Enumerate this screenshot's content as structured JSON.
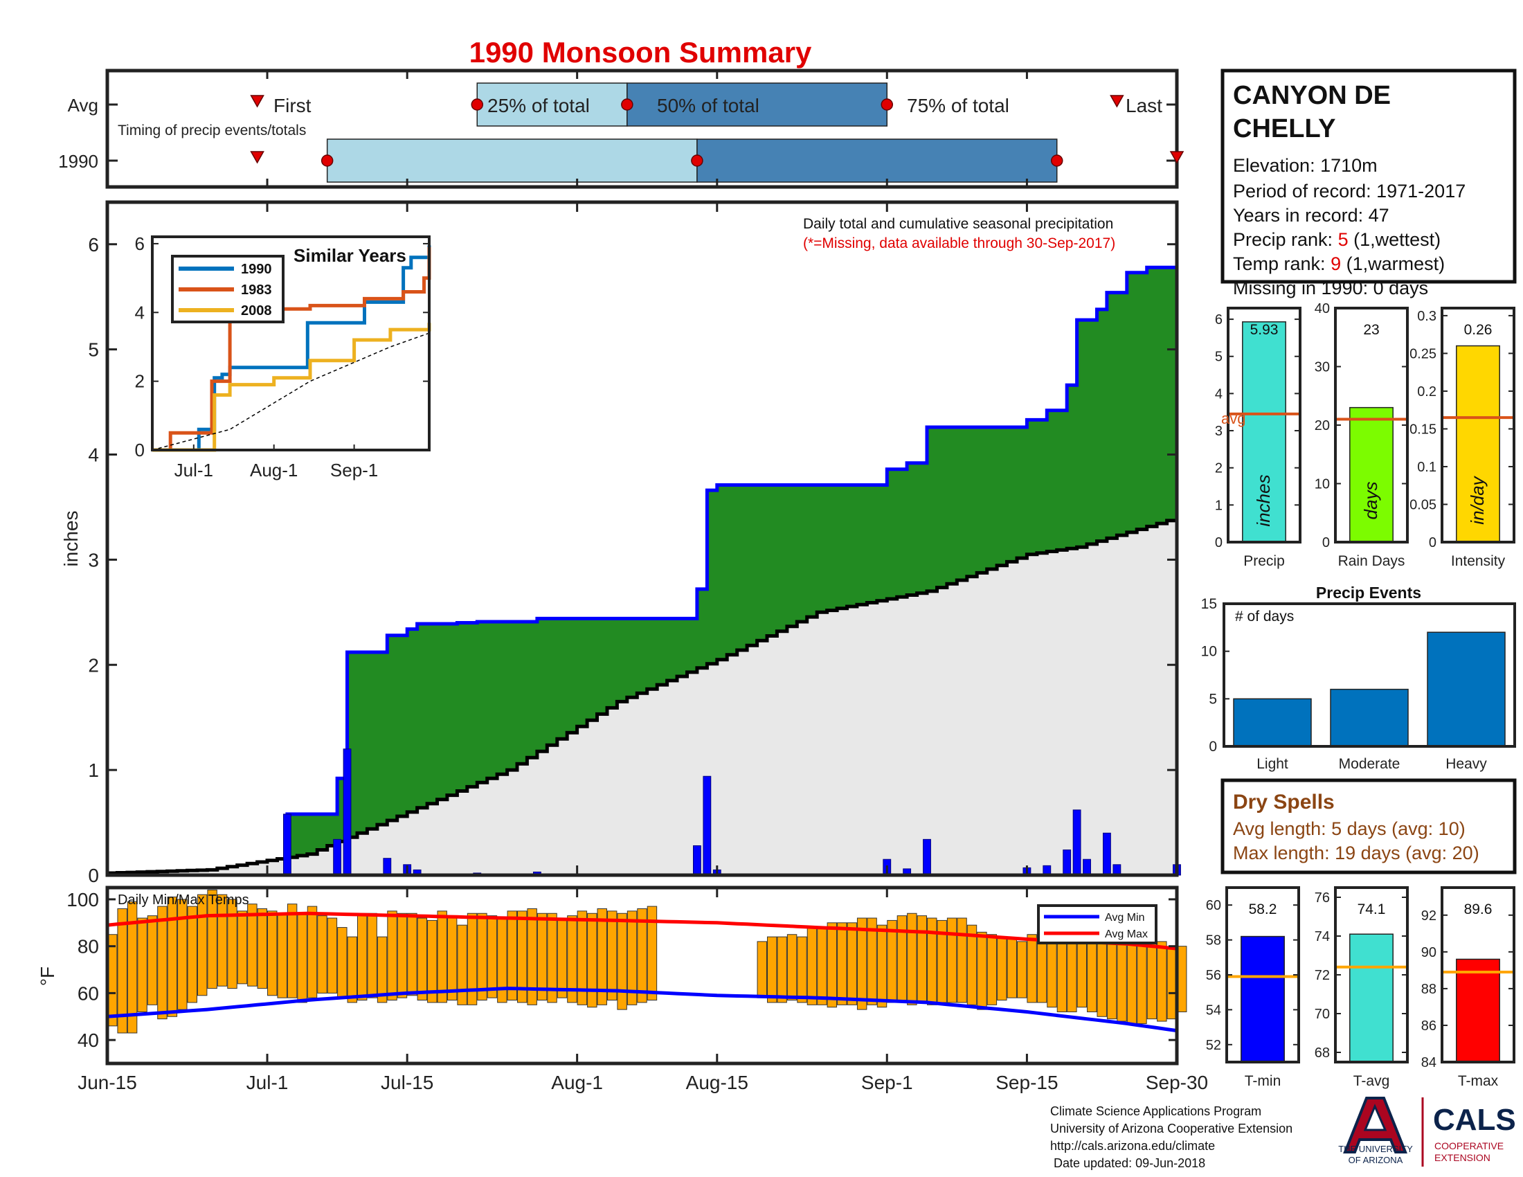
{
  "title": "1990 Monsoon Summary",
  "colors": {
    "title_red": "#e00000",
    "rank_red": "#e00000",
    "missing_red": "#e00000",
    "precip_cumulative_blue": "#0000ff",
    "excess_green": "#228b22",
    "normal_fill_gray": "#e8e8e8",
    "daily_precip_bar": "#0000ff",
    "temp_bar_orange": "#ffa500",
    "avg_min_line": "#0000ff",
    "avg_max_line": "#ff0000",
    "series_1990": "#0072bd",
    "series_1983": "#d95319",
    "series_2008": "#edb120",
    "precip_bar": "#40e0d0",
    "raindays_bar": "#7cfc00",
    "intensity_bar": "#ffd700",
    "avg_line": "#d95319",
    "events_bar": "#0072bd",
    "dryspell_brown": "#8b4513",
    "tmin_bar": "#0000ff",
    "tavg_bar": "#40e0d0",
    "tmax_bar": "#ff0000",
    "temp_avg_line": "#ffa500",
    "timing_light": "#add8e6",
    "timing_dark": "#4682b4",
    "ua_red": "#ab0520",
    "ua_navy": "#0c234b"
  },
  "timing": {
    "row_labels": [
      "Avg",
      "1990"
    ],
    "subtitle": "Timing of precip events/totals",
    "labels": {
      "first": "First",
      "p25": "25% of total",
      "p50": "50% of total",
      "p75": "75% of total",
      "last": "Last"
    },
    "avg": {
      "first": "1990-06-30",
      "p25": "1990-07-22",
      "p50": "1990-08-06",
      "p75": "1990-09-01",
      "last": "1990-09-24"
    },
    "y1990": {
      "first": "1990-06-30",
      "p25": "1990-07-07",
      "p50": "1990-08-13",
      "p75": "1990-09-18",
      "last": "1990-09-30"
    }
  },
  "station": {
    "name_line1": "CANYON DE",
    "name_line2": "CHELLY",
    "elevation": "Elevation: 1710m",
    "period": "Period of record: 1971-2017",
    "years": "Years in record: 47",
    "precip_rank_label": "Precip rank: ",
    "precip_rank_value": "5",
    "precip_rank_suffix": " (1,wettest)",
    "temp_rank_label": "Temp rank: ",
    "temp_rank_value": "9",
    "temp_rank_suffix": " (1,warmest)",
    "missing": "Missing in 1990: 0 days"
  },
  "main_chart": {
    "header": "Daily total and cumulative seasonal precipitation",
    "missing_note": "(*=Missing, data available through 30-Sep-2017)",
    "ylabel": "inches",
    "ylim": [
      0,
      6.4
    ],
    "yticks": [
      0,
      1,
      2,
      3,
      4,
      5,
      6
    ],
    "xticks": [
      {
        "date": "1990-06-15",
        "label": "Jun-15"
      },
      {
        "date": "1990-07-01",
        "label": "Jul-1"
      },
      {
        "date": "1990-07-15",
        "label": "Jul-15"
      },
      {
        "date": "1990-08-01",
        "label": "Aug-1"
      },
      {
        "date": "1990-08-15",
        "label": "Aug-15"
      },
      {
        "date": "1990-09-01",
        "label": "Sep-1"
      },
      {
        "date": "1990-09-15",
        "label": "Sep-15"
      },
      {
        "date": "1990-09-30",
        "label": "Sep-30"
      }
    ]
  },
  "chart_data": [
    {
      "type": "area",
      "title": "Daily total and cumulative seasonal precipitation",
      "ylabel": "inches",
      "x_range": [
        "1990-06-15",
        "1990-09-30"
      ],
      "ylim": [
        0,
        6.4
      ],
      "series": [
        {
          "name": "cumulative 1990",
          "points": [
            [
              "1990-06-15",
              0.0
            ],
            [
              "1990-07-02",
              0.0
            ],
            [
              "1990-07-03",
              0.58
            ],
            [
              "1990-07-07",
              0.58
            ],
            [
              "1990-07-08",
              0.92
            ],
            [
              "1990-07-09",
              2.12
            ],
            [
              "1990-07-12",
              2.12
            ],
            [
              "1990-07-13",
              2.28
            ],
            [
              "1990-07-14",
              2.28
            ],
            [
              "1990-07-15",
              2.34
            ],
            [
              "1990-07-16",
              2.39
            ],
            [
              "1990-07-20",
              2.4
            ],
            [
              "1990-07-22",
              2.41
            ],
            [
              "1990-07-27",
              2.41
            ],
            [
              "1990-07-28",
              2.44
            ],
            [
              "1990-08-12",
              2.44
            ],
            [
              "1990-08-13",
              2.72
            ],
            [
              "1990-08-14",
              3.66
            ],
            [
              "1990-08-15",
              3.71
            ],
            [
              "1990-08-31",
              3.71
            ],
            [
              "1990-09-01",
              3.86
            ],
            [
              "1990-09-03",
              3.92
            ],
            [
              "1990-09-05",
              4.26
            ],
            [
              "1990-09-14",
              4.26
            ],
            [
              "1990-09-15",
              4.33
            ],
            [
              "1990-09-16",
              4.33
            ],
            [
              "1990-09-17",
              4.42
            ],
            [
              "1990-09-19",
              4.66
            ],
            [
              "1990-09-20",
              5.28
            ],
            [
              "1990-09-22",
              5.38
            ],
            [
              "1990-09-23",
              5.54
            ],
            [
              "1990-09-25",
              5.73
            ],
            [
              "1990-09-27",
              5.78
            ],
            [
              "1990-09-30",
              5.93
            ]
          ]
        },
        {
          "name": "cumulative average",
          "points": [
            [
              "1990-06-15",
              0.02
            ],
            [
              "1990-06-25",
              0.05
            ],
            [
              "1990-07-05",
              0.2
            ],
            [
              "1990-07-15",
              0.6
            ],
            [
              "1990-07-25",
              1.0
            ],
            [
              "1990-08-05",
              1.65
            ],
            [
              "1990-08-15",
              2.05
            ],
            [
              "1990-08-25",
              2.5
            ],
            [
              "1990-09-05",
              2.7
            ],
            [
              "1990-09-15",
              3.05
            ],
            [
              "1990-09-20",
              3.12
            ],
            [
              "1990-09-30",
              3.4
            ]
          ]
        }
      ],
      "daily_precip": [
        [
          "1990-07-03",
          0.58
        ],
        [
          "1990-07-08",
          0.34
        ],
        [
          "1990-07-09",
          1.2
        ],
        [
          "1990-07-13",
          0.16
        ],
        [
          "1990-07-15",
          0.1
        ],
        [
          "1990-07-16",
          0.05
        ],
        [
          "1990-07-22",
          0.02
        ],
        [
          "1990-07-28",
          0.03
        ],
        [
          "1990-08-13",
          0.28
        ],
        [
          "1990-08-14",
          0.94
        ],
        [
          "1990-08-15",
          0.05
        ],
        [
          "1990-09-01",
          0.15
        ],
        [
          "1990-09-03",
          0.06
        ],
        [
          "1990-09-05",
          0.34
        ],
        [
          "1990-09-15",
          0.07
        ],
        [
          "1990-09-17",
          0.09
        ],
        [
          "1990-09-19",
          0.24
        ],
        [
          "1990-09-20",
          0.62
        ],
        [
          "1990-09-21",
          0.15
        ],
        [
          "1990-09-23",
          0.4
        ],
        [
          "1990-09-24",
          0.1
        ],
        [
          "1990-09-30",
          0.1
        ]
      ]
    },
    {
      "type": "line",
      "title": "Similar Years",
      "x_range": [
        "1990-06-15",
        "1990-09-30"
      ],
      "ylim": [
        0,
        6
      ],
      "yticks": [
        0,
        2,
        4,
        6
      ],
      "xticks": [
        "Jul-1",
        "Aug-1",
        "Sep-1"
      ],
      "series": [
        {
          "name": "1990",
          "points": [
            [
              "1990-06-15",
              0
            ],
            [
              "1990-07-02",
              0
            ],
            [
              "1990-07-03",
              0.6
            ],
            [
              "1990-07-07",
              0.6
            ],
            [
              "1990-07-09",
              2.1
            ],
            [
              "1990-07-12",
              2.2
            ],
            [
              "1990-07-15",
              2.4
            ],
            [
              "1990-08-12",
              2.4
            ],
            [
              "1990-08-14",
              3.7
            ],
            [
              "1990-08-31",
              3.7
            ],
            [
              "1990-09-05",
              4.3
            ],
            [
              "1990-09-15",
              4.3
            ],
            [
              "1990-09-20",
              5.3
            ],
            [
              "1990-09-23",
              5.6
            ],
            [
              "1990-09-30",
              5.95
            ]
          ]
        },
        {
          "name": "1983",
          "points": [
            [
              "1990-06-15",
              0
            ],
            [
              "1990-06-20",
              0
            ],
            [
              "1990-06-22",
              0.5
            ],
            [
              "1990-07-05",
              0.5
            ],
            [
              "1990-07-08",
              2.0
            ],
            [
              "1990-07-15",
              4.0
            ],
            [
              "1990-07-25",
              4.1
            ],
            [
              "1990-08-15",
              4.2
            ],
            [
              "1990-09-05",
              4.4
            ],
            [
              "1990-09-20",
              4.6
            ],
            [
              "1990-09-28",
              5.0
            ],
            [
              "1990-09-30",
              5.9
            ]
          ]
        },
        {
          "name": "2008",
          "points": [
            [
              "1990-06-15",
              0
            ],
            [
              "1990-07-07",
              0
            ],
            [
              "1990-07-09",
              1.6
            ],
            [
              "1990-07-15",
              1.9
            ],
            [
              "1990-08-01",
              2.1
            ],
            [
              "1990-08-15",
              2.6
            ],
            [
              "1990-09-01",
              3.2
            ],
            [
              "1990-09-15",
              3.5
            ],
            [
              "1990-09-30",
              3.7
            ]
          ]
        },
        {
          "name": "average",
          "points": [
            [
              "1990-06-15",
              0
            ],
            [
              "1990-07-15",
              0.6
            ],
            [
              "1990-08-15",
              2.0
            ],
            [
              "1990-09-15",
              3.0
            ],
            [
              "1990-09-30",
              3.4
            ]
          ]
        }
      ]
    },
    {
      "type": "bar",
      "title": "Daily Min/Max Temps",
      "ylabel": "°F",
      "ylim": [
        30,
        105
      ],
      "yticks": [
        40,
        60,
        80,
        100
      ],
      "legend": [
        "Avg Min",
        "Avg Max"
      ],
      "avg_min_points": [
        [
          "1990-06-15",
          50
        ],
        [
          "1990-06-25",
          53
        ],
        [
          "1990-07-05",
          57
        ],
        [
          "1990-07-15",
          60
        ],
        [
          "1990-07-25",
          62
        ],
        [
          "1990-08-05",
          61
        ],
        [
          "1990-08-15",
          59
        ],
        [
          "1990-08-25",
          58
        ],
        [
          "1990-09-05",
          56
        ],
        [
          "1990-09-15",
          52
        ],
        [
          "1990-09-25",
          47
        ],
        [
          "1990-09-30",
          44
        ]
      ],
      "avg_max_points": [
        [
          "1990-06-15",
          89
        ],
        [
          "1990-06-25",
          93
        ],
        [
          "1990-07-05",
          94
        ],
        [
          "1990-07-15",
          93
        ],
        [
          "1990-07-25",
          92
        ],
        [
          "1990-08-05",
          91
        ],
        [
          "1990-08-15",
          90
        ],
        [
          "1990-08-25",
          88
        ],
        [
          "1990-09-05",
          86
        ],
        [
          "1990-09-15",
          83
        ],
        [
          "1990-09-25",
          81
        ],
        [
          "1990-09-30",
          79
        ]
      ],
      "daily_min": [
        46,
        43,
        43,
        52,
        55,
        49,
        50,
        53,
        56,
        59,
        62,
        63,
        62,
        64,
        63,
        62,
        59,
        58,
        58,
        56,
        58,
        60,
        60,
        58,
        56,
        57,
        58,
        56,
        57,
        58,
        59,
        57,
        56,
        56,
        57,
        55,
        55,
        57,
        58,
        56,
        57,
        56,
        55,
        57,
        56,
        58,
        56,
        55,
        54,
        55,
        57,
        53,
        55,
        56,
        57,
        null,
        null,
        null,
        null,
        null,
        null,
        null,
        null,
        null,
        null,
        58,
        56,
        56,
        57,
        56,
        55,
        55,
        54,
        55,
        55,
        53,
        55,
        54,
        56,
        57,
        55,
        56,
        55,
        56,
        56,
        56,
        55,
        53,
        55,
        57,
        58,
        58,
        56,
        56,
        54,
        52,
        52,
        54,
        52,
        50,
        49,
        48,
        47,
        47,
        49,
        48,
        49,
        52
      ],
      "daily_max": [
        85,
        96,
        99,
        92,
        93,
        97,
        101,
        100,
        97,
        102,
        104,
        102,
        100,
        95,
        98,
        96,
        95,
        94,
        98,
        94,
        97,
        93,
        92,
        88,
        84,
        94,
        94,
        84,
        95,
        94,
        94,
        92,
        91,
        95,
        92,
        89,
        94,
        94,
        93,
        92,
        95,
        95,
        96,
        94,
        94,
        92,
        93,
        95,
        94,
        96,
        95,
        94,
        95,
        96,
        97,
        null,
        null,
        null,
        null,
        null,
        null,
        null,
        null,
        null,
        null,
        82,
        84,
        84,
        85,
        84,
        88,
        88,
        90,
        90,
        90,
        92,
        92,
        89,
        91,
        93,
        94,
        93,
        92,
        91,
        92,
        92,
        89,
        86,
        85,
        84,
        83,
        82,
        85,
        86,
        88,
        89,
        91,
        92,
        93,
        95,
        96,
        95,
        88,
        86,
        82,
        82,
        79,
        80
      ]
    },
    {
      "type": "bar",
      "title": "Precip",
      "categories": [
        "Precip"
      ],
      "values": [
        5.93
      ],
      "avg": 3.45,
      "ylim": [
        0,
        6.3
      ],
      "yticks": [
        0,
        1,
        2,
        3,
        4,
        5,
        6
      ],
      "bar_text": "inches",
      "avg_text": "avg"
    },
    {
      "type": "bar",
      "title": "Rain Days",
      "categories": [
        "Rain Days"
      ],
      "values": [
        23
      ],
      "avg": 21,
      "ylim": [
        0,
        40
      ],
      "yticks": [
        0,
        10,
        20,
        30,
        40
      ],
      "bar_text": "days"
    },
    {
      "type": "bar",
      "title": "Intensity",
      "categories": [
        "Intensity"
      ],
      "values": [
        0.26
      ],
      "avg": 0.165,
      "ylim": [
        0,
        0.31
      ],
      "yticks": [
        0,
        0.05,
        0.1,
        0.15,
        0.2,
        0.25,
        0.3
      ],
      "bar_text": "in/day"
    },
    {
      "type": "bar",
      "title": "Precip Events",
      "ylabel": "# of days",
      "categories": [
        "Light",
        "Moderate",
        "Heavy"
      ],
      "values": [
        5,
        6,
        12
      ],
      "ylim": [
        0,
        15
      ],
      "yticks": [
        0,
        5,
        10,
        15
      ]
    },
    {
      "type": "bar",
      "title": "T-min",
      "categories": [
        "T-min"
      ],
      "values": [
        58.2
      ],
      "avg": 55.9,
      "ylim": [
        51,
        61
      ],
      "yticks": [
        52,
        54,
        56,
        58,
        60
      ]
    },
    {
      "type": "bar",
      "title": "T-avg",
      "categories": [
        "T-avg"
      ],
      "values": [
        74.1
      ],
      "avg": 72.4,
      "ylim": [
        67.5,
        76.5
      ],
      "yticks": [
        68,
        70,
        72,
        74,
        76
      ]
    },
    {
      "type": "bar",
      "title": "T-max",
      "categories": [
        "T-max"
      ],
      "values": [
        89.6
      ],
      "avg": 88.9,
      "ylim": [
        84,
        93.5
      ],
      "yticks": [
        84,
        86,
        88,
        90,
        92
      ]
    }
  ],
  "small_panels": {
    "precip": {
      "value_label": "5.93",
      "xlabel": "Precip"
    },
    "raindays": {
      "value_label": "23",
      "xlabel": "Rain Days"
    },
    "intensity": {
      "value_label": "0.26",
      "xlabel": "Intensity"
    },
    "tmin": {
      "value_label": "58.2",
      "xlabel": "T-min"
    },
    "tavg": {
      "value_label": "74.1",
      "xlabel": "T-avg"
    },
    "tmax": {
      "value_label": "89.6",
      "xlabel": "T-max"
    }
  },
  "dry_spells": {
    "title": "Dry Spells",
    "avg_length": "Avg length: 5 days (avg: 10)",
    "max_length": "Max length: 19 days (avg: 20)"
  },
  "footer": {
    "line1": "Climate Science Applications Program",
    "line2": "University of Arizona Cooperative Extension",
    "line3": "http://cals.arizona.edu/climate",
    "line4": " Date updated: 09-Jun-2018"
  },
  "logo": {
    "ua_letter": "A",
    "ua_line1": "THE UNIVERSITY",
    "ua_line2": "OF ARIZONA",
    "cals": "CALS",
    "cals_line1": "COOPERATIVE",
    "cals_line2": "EXTENSION"
  }
}
